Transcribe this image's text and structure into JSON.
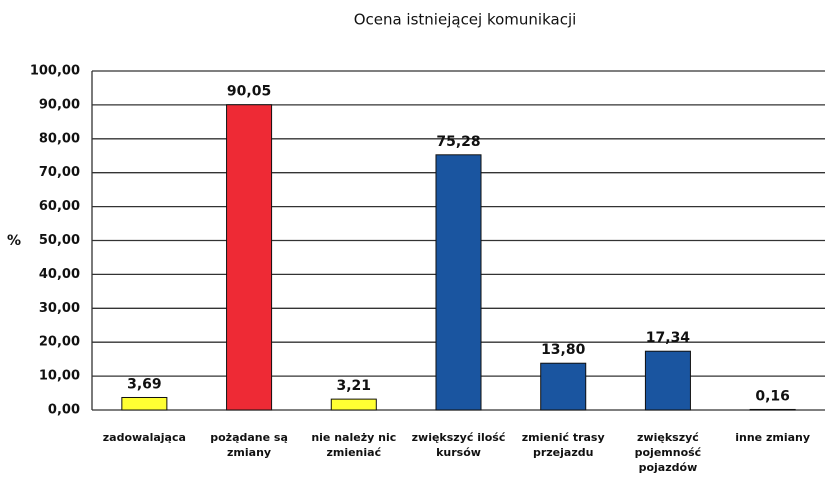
{
  "chart_data": {
    "type": "bar",
    "title": "Ocena istniejącej komunikacji",
    "y_label": "%",
    "categories": [
      "zadowalająca",
      "pożądane są zmiany",
      "nie należy nic zmieniać",
      "zwiększyć ilość kursów",
      "zmienić trasy przejazdu",
      "zwiększyć pojemność pojazdów",
      "inne zmiany"
    ],
    "values": [
      3.69,
      90.05,
      3.21,
      75.28,
      13.8,
      17.34,
      0.16
    ],
    "value_labels": [
      "3,69",
      "90,05",
      "3,21",
      "75,28",
      "13,80",
      "17,34",
      "0,16"
    ],
    "colors": [
      "#ffff33",
      "#ee2a35",
      "#ffff33",
      "#1a55a0",
      "#1a55a0",
      "#1a55a0",
      "#1a55a0"
    ],
    "ylim": [
      0,
      100
    ],
    "yticks": [
      {
        "value": 0,
        "label": "0,00"
      },
      {
        "value": 10,
        "label": "10,00"
      },
      {
        "value": 20,
        "label": "20,00"
      },
      {
        "value": 30,
        "label": "30,00"
      },
      {
        "value": 40,
        "label": "40,00"
      },
      {
        "value": 50,
        "label": "50,00"
      },
      {
        "value": 60,
        "label": "60,00"
      },
      {
        "value": 70,
        "label": "70,00"
      },
      {
        "value": 80,
        "label": "80,00"
      },
      {
        "value": 90,
        "label": "90,00"
      },
      {
        "value": 100,
        "label": "100,00"
      }
    ],
    "grid": true
  }
}
